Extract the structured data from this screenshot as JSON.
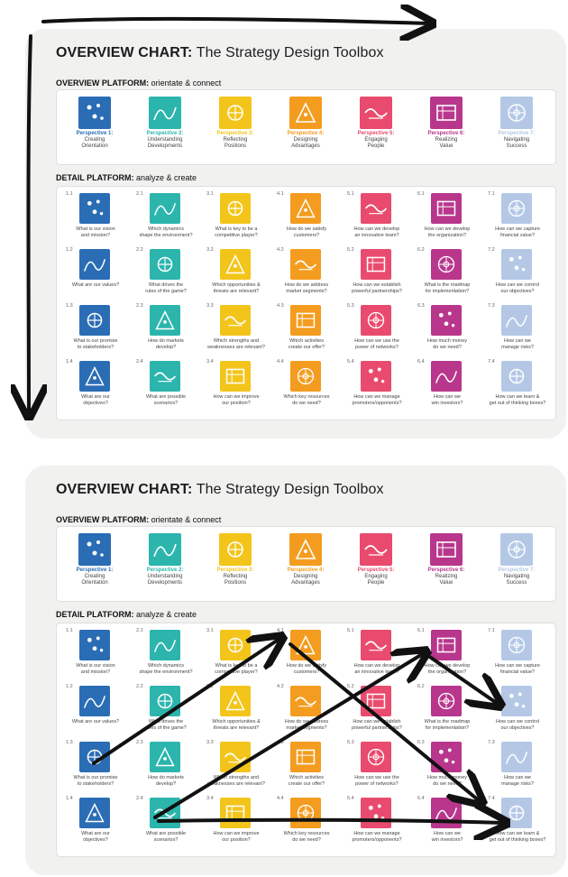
{
  "title_bold": "OVERVIEW CHART:",
  "title_rest": " The Strategy Design Toolbox",
  "overview_bold": "OVERVIEW PLATFORM:",
  "overview_rest": " orientate & connect",
  "detail_bold": "DETAIL PLATFORM:",
  "detail_rest": " analyze & create",
  "colors": {
    "blue": "#2a6db5",
    "teal": "#2bb5ad",
    "yellow": "#f3c51b",
    "orange": "#f39c1f",
    "pink": "#e94b6e",
    "purple": "#b8378c",
    "lightblue": "#b4c8e6"
  },
  "perspectives": [
    {
      "label": "Perspective 1:",
      "line1": "Creating",
      "line2": "Orientation",
      "color": "#2a6db5",
      "icon": "stars-icon"
    },
    {
      "label": "Perspective 2:",
      "line1": "Understanding",
      "line2": "Developments",
      "color": "#2bb5ad",
      "icon": "weather-icon"
    },
    {
      "label": "Perspective 3:",
      "line1": "Reflecting",
      "line2": "Positions",
      "color": "#f3c51b",
      "icon": "globe-icon"
    },
    {
      "label": "Perspective 4:",
      "line1": "Designing",
      "line2": "Advantages",
      "color": "#f39c1f",
      "icon": "chess-icon"
    },
    {
      "label": "Perspective 5:",
      "line1": "Engaging",
      "line2": "People",
      "color": "#e94b6e",
      "icon": "handshake-icon"
    },
    {
      "label": "Perspective 6:",
      "line1": "Realizing",
      "line2": "Value",
      "color": "#b8378c",
      "icon": "money-icon"
    },
    {
      "label": "Perspective 7:",
      "line1": "Navigating",
      "line2": "Success",
      "color": "#b4c8e6",
      "icon": "compass-icon"
    }
  ],
  "detail_columns": [
    {
      "color": "#2a6db5",
      "items": [
        {
          "num": "1.1",
          "q1": "What is our vision",
          "q2": "and mission?"
        },
        {
          "num": "1.2",
          "q1": "What are our values?",
          "q2": ""
        },
        {
          "num": "1.3",
          "q1": "What is our promise",
          "q2": "to stakeholders?"
        },
        {
          "num": "1.4",
          "q1": "What are our",
          "q2": "objectives?"
        }
      ]
    },
    {
      "color": "#2bb5ad",
      "items": [
        {
          "num": "2.1",
          "q1": "Which dynamics",
          "q2": "shape the environment?"
        },
        {
          "num": "2.2",
          "q1": "What drives the",
          "q2": "rules of the game?"
        },
        {
          "num": "2.3",
          "q1": "How do markets",
          "q2": "develop?"
        },
        {
          "num": "2.4",
          "q1": "What are possible",
          "q2": "scenarios?"
        }
      ]
    },
    {
      "color": "#f3c51b",
      "items": [
        {
          "num": "3.1",
          "q1": "What is key to be a",
          "q2": "competitive player?"
        },
        {
          "num": "3.2",
          "q1": "Which opportunities &",
          "q2": "threats are relevant?"
        },
        {
          "num": "3.3",
          "q1": "Which strengths and",
          "q2": "weaknesses are relevant?"
        },
        {
          "num": "3.4",
          "q1": "How can we improve",
          "q2": "our position?"
        }
      ]
    },
    {
      "color": "#f39c1f",
      "items": [
        {
          "num": "4.1",
          "q1": "How do we satisfy",
          "q2": "customers?"
        },
        {
          "num": "4.2",
          "q1": "How do we address",
          "q2": "market segments?"
        },
        {
          "num": "4.3",
          "q1": "Which activities",
          "q2": "create our offer?"
        },
        {
          "num": "4.4",
          "q1": "Which key resources",
          "q2": "do we need?"
        }
      ]
    },
    {
      "color": "#e94b6e",
      "items": [
        {
          "num": "5.1",
          "q1": "How can we develop",
          "q2": "an innovative team?"
        },
        {
          "num": "5.2",
          "q1": "How can we establish",
          "q2": "powerful partnerships?"
        },
        {
          "num": "5.3",
          "q1": "How can we use the",
          "q2": "power of networks?"
        },
        {
          "num": "5.4",
          "q1": "How can we manage",
          "q2": "promoters/opponents?"
        }
      ]
    },
    {
      "color": "#b8378c",
      "items": [
        {
          "num": "6.1",
          "q1": "How can we develop",
          "q2": "the organization?"
        },
        {
          "num": "6.2",
          "q1": "What is the roadmap",
          "q2": "for implementation?"
        },
        {
          "num": "6.3",
          "q1": "How much money",
          "q2": "do we need?"
        },
        {
          "num": "6.4",
          "q1": "How can we",
          "q2": "win investors?"
        }
      ]
    },
    {
      "color": "#b4c8e6",
      "items": [
        {
          "num": "7.1",
          "q1": "How can we capture",
          "q2": "financial value?"
        },
        {
          "num": "7.2",
          "q1": "How can we control",
          "q2": "our objectives?"
        },
        {
          "num": "7.3",
          "q1": "How can we",
          "q2": "manage risks?"
        },
        {
          "num": "7.4",
          "q1": "How can we learn &",
          "q2": "get out of thinking boxes?"
        }
      ]
    }
  ]
}
